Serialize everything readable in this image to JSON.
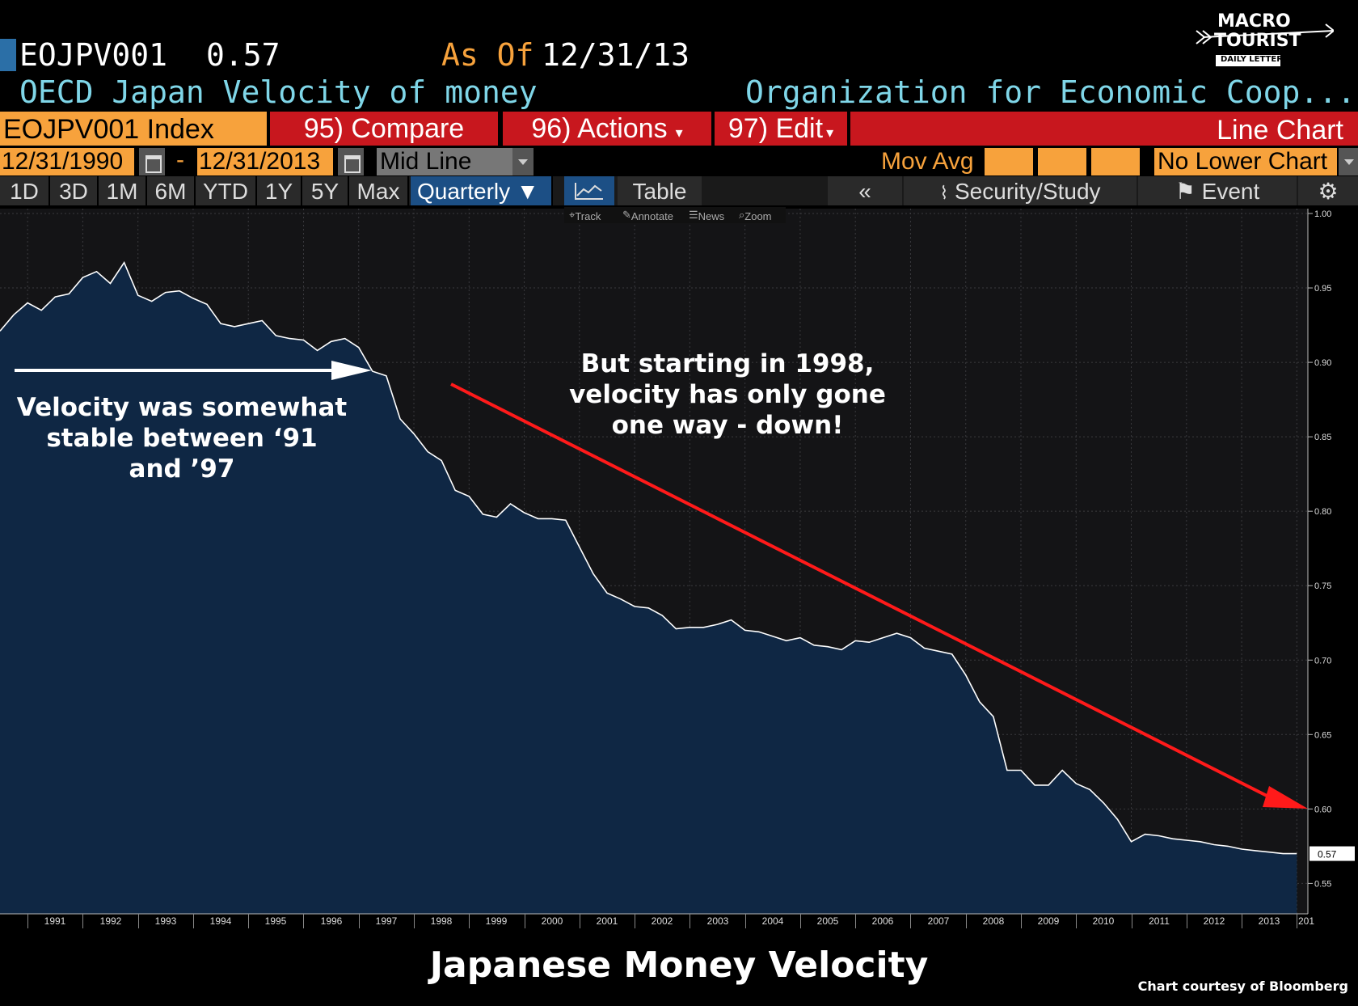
{
  "header": {
    "ticker": "EOJPV001",
    "last_value": "0.57",
    "as_of_label": "As Of",
    "as_of_date": "12/31/13",
    "description": "OECD Japan Velocity of money",
    "source": "Organization for Economic Coop..."
  },
  "logo": {
    "line1": "MACRO",
    "line2": "TOURIST",
    "line3": "DAILY LETTER"
  },
  "toolbar": {
    "index": "EOJPV001 Index",
    "compare": "95) Compare",
    "actions": "96) Actions",
    "edit": "97) Edit",
    "chart_type": "Line Chart"
  },
  "dates": {
    "start": "12/31/1990",
    "dash": "-",
    "end": "12/31/2013",
    "style": "Mid Line",
    "mov_avg": "Mov Avg",
    "lower_chart": "No Lower Chart"
  },
  "periods": [
    "1D",
    "3D",
    "1M",
    "6M",
    "YTD",
    "1Y",
    "5Y",
    "Max"
  ],
  "frequency": "Quarterly ▼",
  "table_label": "Table",
  "right_buttons": {
    "back": "«",
    "study": "Security/Study",
    "event": "Event"
  },
  "subtools": [
    "Track",
    "Annotate",
    "News",
    "Zoom"
  ],
  "colors": {
    "orange": "#f7a23c",
    "red": "#c8171e",
    "area": "#0f2744",
    "cyan": "#7fd6e8"
  },
  "annotations": {
    "left": [
      "Velocity was somewhat",
      "stable between ‘91",
      "and ’97"
    ],
    "right": [
      "But starting in 1998,",
      "velocity has only gone",
      "one way - down!"
    ]
  },
  "chart_data": {
    "type": "area",
    "title": "Japanese Money Velocity",
    "xlabel": "",
    "ylabel": "",
    "ylim": [
      0.535,
      1.0
    ],
    "xlim": [
      1990.5,
      2014.2
    ],
    "x_ticks": [
      "1991",
      "1992",
      "1993",
      "1994",
      "1995",
      "1996",
      "1997",
      "1998",
      "1999",
      "2000",
      "2001",
      "2002",
      "2003",
      "2004",
      "2005",
      "2006",
      "2007",
      "2008",
      "2009",
      "2010",
      "2011",
      "2012",
      "2013",
      "201"
    ],
    "y_ticks": [
      "1.00",
      "0.95",
      "0.90",
      "0.85",
      "0.80",
      "0.75",
      "0.70",
      "0.65",
      "0.60",
      "0.55"
    ],
    "last_label": "0.57",
    "series": [
      {
        "x": [
          1990.5,
          1990.75,
          1991.0,
          1991.25,
          1991.5,
          1991.75,
          1992.0,
          1992.25,
          1992.5,
          1992.75,
          1993.0,
          1993.25,
          1993.5,
          1993.75,
          1994.0,
          1994.25,
          1994.5,
          1994.75,
          1995.0,
          1995.25,
          1995.5,
          1995.75,
          1996.0,
          1996.25,
          1996.5,
          1996.75,
          1997.0,
          1997.25,
          1997.5,
          1997.75,
          1998.0,
          1998.25,
          1998.5,
          1998.75,
          1999.0,
          1999.25,
          1999.5,
          1999.75,
          2000.0,
          2000.25,
          2000.5,
          2000.75,
          2001.0,
          2001.25,
          2001.5,
          2001.75,
          2002.0,
          2002.25,
          2002.5,
          2002.75,
          2003.0,
          2003.25,
          2003.5,
          2003.75,
          2004.0,
          2004.25,
          2004.5,
          2004.75,
          2005.0,
          2005.25,
          2005.5,
          2005.75,
          2006.0,
          2006.25,
          2006.5,
          2006.75,
          2007.0,
          2007.25,
          2007.5,
          2007.75,
          2008.0,
          2008.25,
          2008.5,
          2008.75,
          2009.0,
          2009.25,
          2009.5,
          2009.75,
          2010.0,
          2010.25,
          2010.5,
          2010.75,
          2011.0,
          2011.25,
          2011.5,
          2011.75,
          2012.0,
          2012.25,
          2012.5,
          2012.75,
          2013.0,
          2013.25,
          2013.5,
          2013.75,
          2014.0
        ],
        "values": [
          0.921,
          0.932,
          0.94,
          0.935,
          0.944,
          0.946,
          0.957,
          0.961,
          0.953,
          0.967,
          0.945,
          0.941,
          0.947,
          0.948,
          0.943,
          0.939,
          0.926,
          0.924,
          0.926,
          0.928,
          0.918,
          0.916,
          0.915,
          0.908,
          0.914,
          0.916,
          0.91,
          0.894,
          0.891,
          0.862,
          0.852,
          0.84,
          0.834,
          0.814,
          0.81,
          0.798,
          0.796,
          0.805,
          0.799,
          0.795,
          0.795,
          0.794,
          0.776,
          0.758,
          0.745,
          0.741,
          0.736,
          0.735,
          0.73,
          0.721,
          0.722,
          0.722,
          0.724,
          0.727,
          0.72,
          0.719,
          0.716,
          0.713,
          0.715,
          0.71,
          0.709,
          0.707,
          0.713,
          0.712,
          0.715,
          0.718,
          0.715,
          0.708,
          0.706,
          0.704,
          0.69,
          0.672,
          0.662,
          0.626,
          0.626,
          0.616,
          0.616,
          0.626,
          0.617,
          0.613,
          0.604,
          0.593,
          0.578,
          0.583,
          0.582,
          0.58,
          0.579,
          0.578,
          0.576,
          0.575,
          0.573,
          0.572,
          0.571,
          0.57,
          0.57
        ]
      }
    ]
  }
}
